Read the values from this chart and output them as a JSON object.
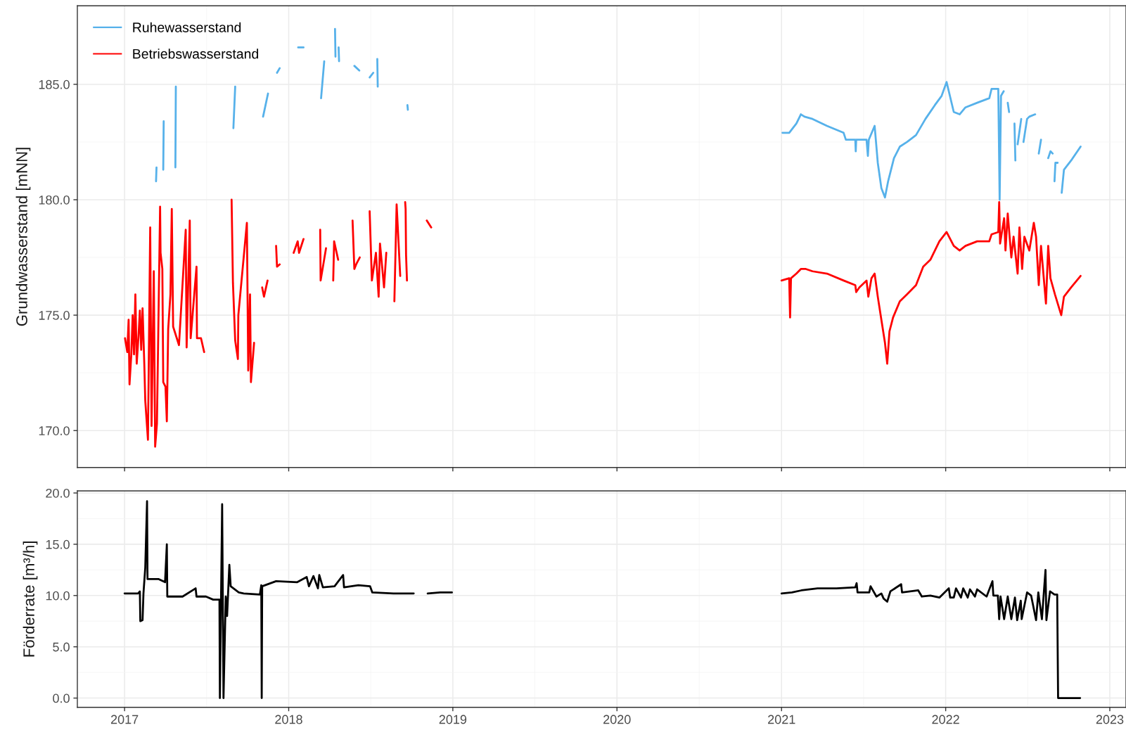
{
  "chart_data": [
    {
      "type": "line",
      "ylabel": "Grundwasserstand [mNN]",
      "legend": "top left",
      "grid": true,
      "tick_labels": "y",
      "xlim": [
        "2016-09-18",
        "2023-02-06"
      ],
      "xticks": [
        "2017",
        "2018",
        "2019",
        "2020",
        "2021",
        "2022",
        "2023"
      ],
      "ylim": [
        168.4,
        188.4
      ],
      "yticks": [
        {
          "value": 170,
          "label": "170.0"
        },
        {
          "value": 175,
          "label": "175.0"
        },
        {
          "value": 180,
          "label": "180.0"
        },
        {
          "value": 185,
          "label": "185.0"
        }
      ],
      "series": [
        {
          "name": "Ruhewasserstand",
          "color": "#56b1ea",
          "x": [
            "2017-03-12",
            "2017-03-13",
            "2017-03-20",
            "2017-03-28",
            "2017-03-29",
            "2017-04-10",
            "2017-04-24",
            "2017-04-25",
            "2017-07-01",
            "2017-08-31",
            "2017-09-04",
            "2017-10-01",
            "2017-11-05",
            "2017-11-16",
            "2017-11-25",
            "2017-12-06",
            "2017-12-12",
            "2018-01-01",
            "2018-01-22",
            "2018-02-03",
            "2018-02-20",
            "2018-03-14",
            "2018-03-21",
            "2018-04-01",
            "2018-04-14",
            "2018-04-15",
            "2018-04-18",
            "2018-04-22",
            "2018-04-23",
            "2018-05-10",
            "2018-05-27",
            "2018-06-07",
            "2018-06-20",
            "2018-06-30",
            "2018-07-08",
            "2018-07-11",
            "2018-07-17",
            "2018-07-18",
            "2018-08-20",
            "2018-09-22",
            "2018-09-23",
            "2020-01-01",
            "2021-01-03",
            "2021-01-18",
            "2021-02-03",
            "2021-02-13",
            "2021-02-21",
            "2021-03-11",
            "2021-04-12",
            "2021-05-19",
            "2021-05-24",
            "2021-06-14",
            "2021-06-15",
            "2021-06-16",
            "2021-07-09",
            "2021-07-12",
            "2021-07-14",
            "2021-07-27",
            "2021-08-03",
            "2021-08-11",
            "2021-08-19",
            "2021-08-26",
            "2021-09-08",
            "2021-09-21",
            "2021-10-07",
            "2021-10-27",
            "2021-11-17",
            "2021-12-08",
            "2021-12-23",
            "2022-01-03",
            "2022-01-19",
            "2022-02-01",
            "2022-02-14",
            "2022-03-12",
            "2022-04-08",
            "2022-04-13",
            "2022-04-28",
            "2022-05-01",
            "2022-05-04",
            "2022-05-10",
            "2022-05-15",
            "2022-05-19",
            "2022-05-22",
            "2022-05-28",
            "2022-06-03",
            "2022-06-05",
            "2022-06-07",
            "2022-06-10",
            "2022-06-18",
            "2022-06-20",
            "2022-06-23",
            "2022-07-01",
            "2022-07-06",
            "2022-07-19",
            "2022-07-23",
            "2022-07-27",
            "2022-08-01",
            "2022-08-10",
            "2022-08-17",
            "2022-08-22",
            "2022-08-27",
            "2022-08-29",
            "2022-08-31",
            "2022-09-02",
            "2022-09-07",
            "2022-09-12",
            "2022-09-16",
            "2022-09-21",
            "2022-10-07",
            "2022-10-28"
          ],
          "values": [
            180.8,
            181.4,
            null,
            181.3,
            183.4,
            null,
            181.4,
            184.9,
            null,
            183.1,
            184.9,
            null,
            183.6,
            184.6,
            null,
            185.5,
            185.7,
            null,
            186.6,
            186.6,
            null,
            184.4,
            186.0,
            null,
            187.4,
            186.2,
            null,
            186.6,
            186.0,
            null,
            185.8,
            185.6,
            null,
            185.3,
            185.5,
            null,
            186.1,
            184.9,
            null,
            184.1,
            183.9,
            null,
            182.9,
            182.9,
            183.3,
            183.7,
            183.6,
            183.5,
            183.2,
            182.9,
            182.6,
            182.6,
            182.1,
            182.6,
            182.6,
            181.9,
            182.6,
            183.2,
            181.6,
            180.5,
            180.1,
            180.8,
            181.8,
            182.3,
            182.5,
            182.8,
            183.5,
            184.1,
            184.5,
            185.1,
            183.8,
            183.7,
            184.0,
            184.2,
            184.4,
            184.8,
            184.8,
            180.0,
            184.5,
            184.7,
            null,
            184.2,
            183.8,
            null,
            183.3,
            181.7,
            null,
            182.4,
            183.5,
            null,
            182.5,
            183.5,
            183.6,
            183.7,
            null,
            182.0,
            182.6,
            null,
            181.8,
            182.1,
            182.0,
            null,
            180.8,
            181.6,
            181.6,
            null,
            180.3,
            181.3,
            181.7,
            182.3
          ]
        },
        {
          "name": "Betriebswasserstand",
          "color": "#ff0000",
          "x": [
            "2017-01-02",
            "2017-01-07",
            "2017-01-10",
            "2017-01-12",
            "2017-01-16",
            "2017-01-19",
            "2017-01-22",
            "2017-01-25",
            "2017-01-28",
            "2017-02-01",
            "2017-02-04",
            "2017-02-07",
            "2017-02-10",
            "2017-02-14",
            "2017-02-16",
            "2017-02-22",
            "2017-02-27",
            "2017-03-02",
            "2017-03-07",
            "2017-03-10",
            "2017-03-14",
            "2017-03-21",
            "2017-03-22",
            "2017-03-26",
            "2017-03-28",
            "2017-04-02",
            "2017-04-05",
            "2017-04-08",
            "2017-04-13",
            "2017-04-16",
            "2017-04-19",
            "2017-05-02",
            "2017-05-17",
            "2017-05-19",
            "2017-05-20",
            "2017-05-26",
            "2017-05-28",
            "2017-06-10",
            "2017-06-11",
            "2017-06-20",
            "2017-06-27",
            "2017-07-15",
            "2017-08-27",
            "2017-08-30",
            "2017-09-04",
            "2017-09-10",
            "2017-09-11",
            "2017-09-30",
            "2017-10-03",
            "2017-10-07",
            "2017-10-09",
            "2017-10-16",
            "2017-10-25",
            "2017-11-03",
            "2017-11-07",
            "2017-11-15",
            "2017-11-27",
            "2017-12-04",
            "2017-12-06",
            "2017-12-12",
            "2017-12-25",
            "2018-01-12",
            "2018-01-21",
            "2018-01-24",
            "2018-02-03",
            "2018-02-20",
            "2018-03-12",
            "2018-03-13",
            "2018-03-25",
            "2018-04-01",
            "2018-04-10",
            "2018-04-12",
            "2018-04-21",
            "2018-05-10",
            "2018-05-23",
            "2018-05-27",
            "2018-05-31",
            "2018-06-08",
            "2018-06-20",
            "2018-06-30",
            "2018-07-05",
            "2018-07-14",
            "2018-07-20",
            "2018-07-23",
            "2018-08-01",
            "2018-08-06",
            "2018-08-15",
            "2018-08-24",
            "2018-08-29",
            "2018-09-06",
            "2018-09-12",
            "2018-09-17",
            "2018-09-18",
            "2018-09-19",
            "2018-09-21",
            "2018-10-15",
            "2018-11-04",
            "2018-11-14",
            "2020-01-01",
            "2021-01-01",
            "2021-01-18",
            "2021-01-20",
            "2021-01-22",
            "2021-02-03",
            "2021-02-13",
            "2021-02-24",
            "2021-03-11",
            "2021-04-12",
            "2021-05-19",
            "2021-06-14",
            "2021-06-16",
            "2021-06-23",
            "2021-07-09",
            "2021-07-13",
            "2021-07-20",
            "2021-07-27",
            "2021-08-03",
            "2021-08-11",
            "2021-08-19",
            "2021-08-24",
            "2021-08-29",
            "2021-09-06",
            "2021-09-21",
            "2021-10-07",
            "2021-10-27",
            "2021-11-12",
            "2021-11-28",
            "2021-12-18",
            "2022-01-03",
            "2022-01-19",
            "2022-02-01",
            "2022-02-14",
            "2022-03-12",
            "2022-04-08",
            "2022-04-13",
            "2022-04-28",
            "2022-04-30",
            "2022-05-02",
            "2022-05-11",
            "2022-05-14",
            "2022-05-19",
            "2022-05-27",
            "2022-06-01",
            "2022-06-10",
            "2022-06-14",
            "2022-06-20",
            "2022-06-25",
            "2022-07-06",
            "2022-07-16",
            "2022-07-21",
            "2022-07-27",
            "2022-08-01",
            "2022-08-12",
            "2022-08-17",
            "2022-08-22",
            "2022-09-01",
            "2022-09-15",
            "2022-09-21",
            "2022-10-07",
            "2022-10-28"
          ],
          "values": [
            174.0,
            173.4,
            174.8,
            172.0,
            173.3,
            175.0,
            173.3,
            175.9,
            172.9,
            174.1,
            175.2,
            173.5,
            175.3,
            172.8,
            171.3,
            169.6,
            178.8,
            170.2,
            176.9,
            169.3,
            170.3,
            179.7,
            177.7,
            177.0,
            172.1,
            171.9,
            170.4,
            174.4,
            175.9,
            179.6,
            174.5,
            173.7,
            178.7,
            173.6,
            174.4,
            179.1,
            174.0,
            177.1,
            174.0,
            174.0,
            173.4,
            null,
            180.0,
            176.4,
            173.9,
            173.1,
            175.0,
            179.0,
            172.6,
            175.9,
            172.1,
            173.8,
            null,
            176.2,
            175.8,
            176.5,
            null,
            178.0,
            177.1,
            177.2,
            null,
            177.7,
            178.2,
            177.7,
            178.3,
            null,
            178.7,
            176.5,
            177.9,
            null,
            176.5,
            178.2,
            177.4,
            null,
            179.1,
            177.0,
            177.2,
            177.5,
            null,
            179.5,
            176.5,
            177.7,
            175.8,
            178.1,
            176.2,
            177.7,
            null,
            175.6,
            179.8,
            176.7,
            null,
            179.9,
            179.6,
            177.6,
            176.5,
            null,
            179.1,
            178.8,
            null,
            176.5,
            176.6,
            174.9,
            176.6,
            176.8,
            177.0,
            177.0,
            176.9,
            176.8,
            176.5,
            176.3,
            176.0,
            176.2,
            176.5,
            175.8,
            176.6,
            176.8,
            175.8,
            174.8,
            173.8,
            172.9,
            174.3,
            174.9,
            175.6,
            175.9,
            176.3,
            177.1,
            177.4,
            178.2,
            178.6,
            178.0,
            177.8,
            178.0,
            178.2,
            178.2,
            178.5,
            178.6,
            179.9,
            178.1,
            179.2,
            177.8,
            179.4,
            177.5,
            178.4,
            176.8,
            178.8,
            177.0,
            178.4,
            177.8,
            179.0,
            178.4,
            176.3,
            178.0,
            175.5,
            178.0,
            176.6,
            175.9,
            175.0,
            175.8,
            176.2,
            176.7
          ]
        }
      ]
    },
    {
      "type": "line",
      "ylabel": "Förderrate [m³/h]",
      "grid": true,
      "xlim": [
        "2016-09-18",
        "2023-02-06"
      ],
      "xticks": [
        "2017",
        "2018",
        "2019",
        "2020",
        "2021",
        "2022",
        "2023"
      ],
      "ylim": [
        -0.9,
        20.2
      ],
      "yticks": [
        {
          "value": 0,
          "label": "0.0"
        },
        {
          "value": 5,
          "label": "5.0"
        },
        {
          "value": 10,
          "label": "10.0"
        },
        {
          "value": 15,
          "label": "15.0"
        },
        {
          "value": 20,
          "label": "20.0"
        }
      ],
      "series": [
        {
          "color": "#000000",
          "x": [
            "2017-01-01",
            "2017-01-31",
            "2017-02-04",
            "2017-02-05",
            "2017-02-10",
            "2017-02-12",
            "2017-02-16",
            "2017-02-20",
            "2017-02-21",
            "2017-03-18",
            "2017-04-01",
            "2017-04-05",
            "2017-04-06",
            "2017-05-10",
            "2017-06-08",
            "2017-06-10",
            "2017-07-01",
            "2017-07-17",
            "2017-07-31",
            "2017-08-01",
            "2017-08-06",
            "2017-08-09",
            "2017-08-14",
            "2017-08-17",
            "2017-08-22",
            "2017-08-25",
            "2017-09-12",
            "2017-09-23",
            "2017-10-29",
            "2017-11-01",
            "2017-11-02",
            "2017-11-03",
            "2017-12-04",
            "2018-01-20",
            "2018-02-10",
            "2018-02-15",
            "2018-02-25",
            "2018-03-07",
            "2018-03-10",
            "2018-03-18",
            "2018-04-13",
            "2018-05-02",
            "2018-05-04",
            "2018-06-05",
            "2018-07-01",
            "2018-07-06",
            "2018-08-22",
            "2018-10-06",
            "2018-10-20",
            "2018-11-06",
            "2018-12-04",
            "2018-12-30",
            "2020-01-01",
            "2021-01-01",
            "2021-01-24",
            "2021-02-14",
            "2021-03-22",
            "2021-05-03",
            "2021-06-14",
            "2021-06-17",
            "2021-06-19",
            "2021-07-15",
            "2021-07-18",
            "2021-07-31",
            "2021-08-11",
            "2021-08-16",
            "2021-08-24",
            "2021-08-31",
            "2021-09-24",
            "2021-09-26",
            "2021-11-01",
            "2021-11-09",
            "2021-11-28",
            "2021-12-18",
            "2022-01-08",
            "2022-01-11",
            "2022-01-19",
            "2022-01-24",
            "2022-02-04",
            "2022-02-09",
            "2022-02-19",
            "2022-02-24",
            "2022-03-07",
            "2022-03-12",
            "2022-04-02",
            "2022-04-15",
            "2022-04-17",
            "2022-04-27",
            "2022-04-30",
            "2022-05-03",
            "2022-05-11",
            "2022-05-19",
            "2022-05-27",
            "2022-06-04",
            "2022-06-09",
            "2022-06-17",
            "2022-06-19",
            "2022-07-01",
            "2022-07-10",
            "2022-07-21",
            "2022-07-26",
            "2022-08-03",
            "2022-08-11",
            "2022-08-13",
            "2022-08-21",
            "2022-08-31",
            "2022-09-06",
            "2022-09-08",
            "2022-10-27"
          ],
          "values": [
            10.2,
            10.2,
            10.4,
            7.5,
            7.6,
            10.2,
            12.7,
            19.2,
            11.6,
            11.6,
            11.3,
            15.0,
            9.9,
            9.9,
            10.7,
            9.9,
            9.9,
            9.6,
            9.6,
            0.0,
            18.9,
            0.0,
            9.9,
            8.0,
            13.0,
            10.9,
            10.3,
            10.2,
            10.1,
            11.0,
            0.0,
            10.9,
            11.4,
            11.3,
            11.8,
            10.9,
            11.9,
            10.7,
            12.0,
            10.8,
            10.9,
            12.0,
            10.8,
            11.0,
            10.9,
            10.3,
            10.2,
            10.2,
            null,
            10.2,
            10.3,
            10.3,
            null,
            10.2,
            10.3,
            10.5,
            10.7,
            10.7,
            10.8,
            11.2,
            10.3,
            10.3,
            10.9,
            9.9,
            10.2,
            9.7,
            9.4,
            10.4,
            11.1,
            10.3,
            10.5,
            9.9,
            10.0,
            9.8,
            10.7,
            9.8,
            9.8,
            10.7,
            9.8,
            10.7,
            9.8,
            10.6,
            9.9,
            10.6,
            9.9,
            11.4,
            10.0,
            10.0,
            7.7,
            9.9,
            7.7,
            9.9,
            7.7,
            9.8,
            7.6,
            9.5,
            7.7,
            10.3,
            10.0,
            7.6,
            10.3,
            7.7,
            12.5,
            7.6,
            10.4,
            10.1,
            10.1,
            0.0,
            0.0
          ]
        }
      ]
    }
  ]
}
